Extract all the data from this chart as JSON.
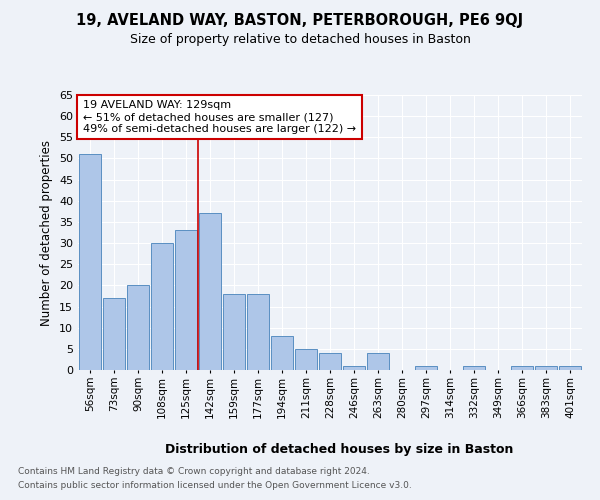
{
  "title1": "19, AVELAND WAY, BASTON, PETERBOROUGH, PE6 9QJ",
  "title2": "Size of property relative to detached houses in Baston",
  "xlabel": "Distribution of detached houses by size in Baston",
  "ylabel": "Number of detached properties",
  "categories": [
    "56sqm",
    "73sqm",
    "90sqm",
    "108sqm",
    "125sqm",
    "142sqm",
    "159sqm",
    "177sqm",
    "194sqm",
    "211sqm",
    "228sqm",
    "246sqm",
    "263sqm",
    "280sqm",
    "297sqm",
    "314sqm",
    "332sqm",
    "349sqm",
    "366sqm",
    "383sqm",
    "401sqm"
  ],
  "values": [
    51,
    17,
    20,
    30,
    33,
    37,
    18,
    18,
    8,
    5,
    4,
    1,
    4,
    0,
    1,
    0,
    1,
    0,
    1,
    1,
    1
  ],
  "bar_color": "#aec6e8",
  "bar_edge_color": "#5a8fc2",
  "vline_x_index": 4.5,
  "vline_color": "#cc0000",
  "annotation_text": "19 AVELAND WAY: 129sqm\n← 51% of detached houses are smaller (127)\n49% of semi-detached houses are larger (122) →",
  "annotation_box_color": "#ffffff",
  "annotation_box_edge": "#cc0000",
  "ylim": [
    0,
    65
  ],
  "yticks": [
    0,
    5,
    10,
    15,
    20,
    25,
    30,
    35,
    40,
    45,
    50,
    55,
    60,
    65
  ],
  "footnote1": "Contains HM Land Registry data © Crown copyright and database right 2024.",
  "footnote2": "Contains public sector information licensed under the Open Government Licence v3.0.",
  "background_color": "#eef2f8",
  "grid_color": "#ffffff"
}
